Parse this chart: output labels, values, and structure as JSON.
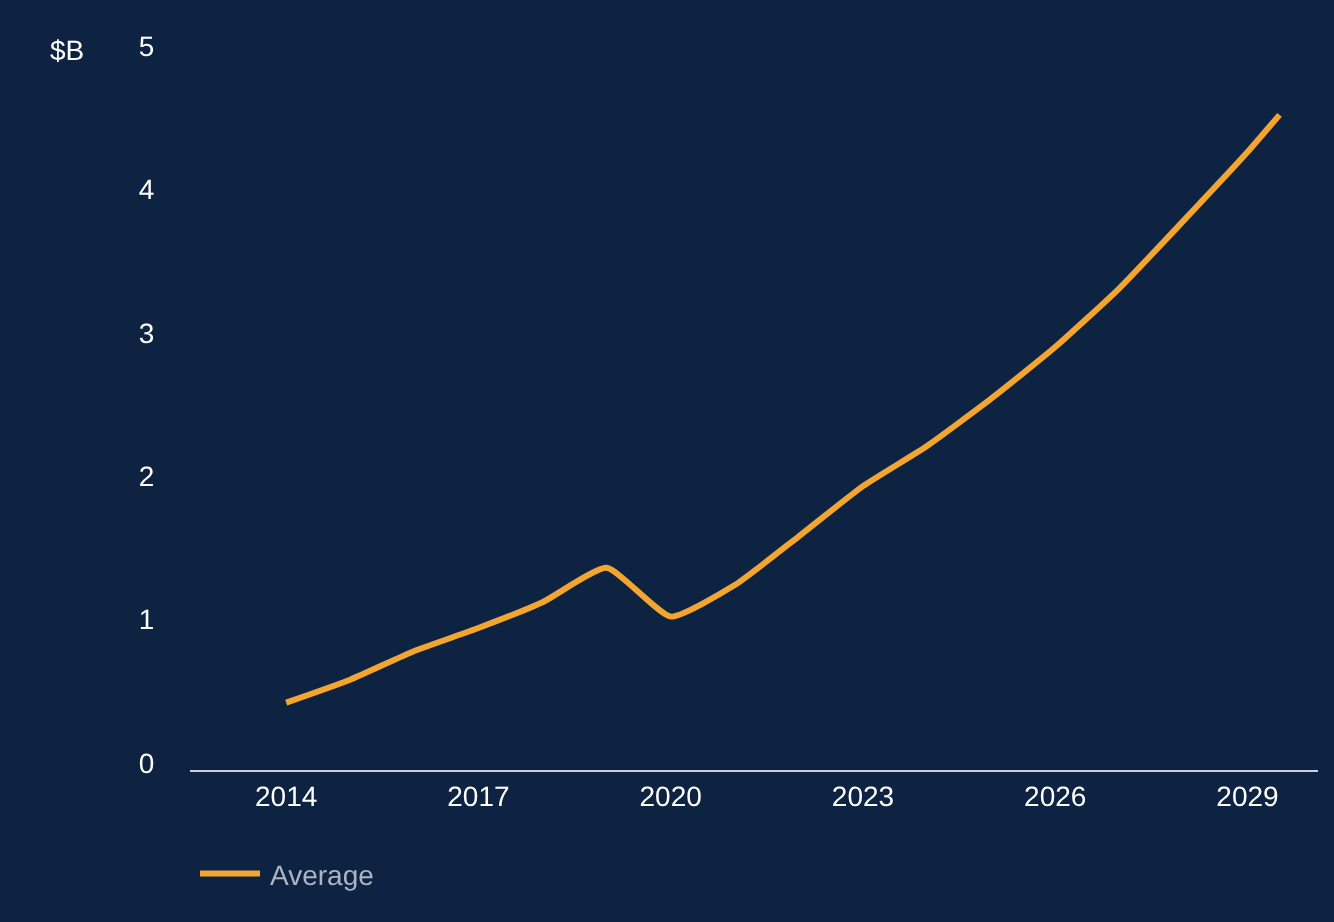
{
  "chart_data": {
    "type": "line",
    "ylabel": "$B",
    "x": [
      2014,
      2015,
      2016,
      2017,
      2018,
      2019,
      2020,
      2021,
      2022,
      2023,
      2024,
      2025,
      2026,
      2027,
      2028,
      2029,
      2029.5
    ],
    "series": [
      {
        "name": "Average",
        "color": "#f2a531",
        "values": [
          0.42,
          0.58,
          0.78,
          0.94,
          1.12,
          1.36,
          1.02,
          1.24,
          1.58,
          1.93,
          2.21,
          2.54,
          2.9,
          3.31,
          3.78,
          4.26,
          4.52
        ]
      }
    ],
    "xlim": [
      2012.5,
      2030.1
    ],
    "xticks": [
      2014,
      2017,
      2020,
      2023,
      2026,
      2029
    ],
    "ylim": [
      -0.05,
      5
    ],
    "yticks": [
      0,
      1,
      2,
      3,
      4,
      5
    ],
    "grid": false,
    "legend": "bottom left",
    "marker": "none",
    "line_style": "solid"
  }
}
